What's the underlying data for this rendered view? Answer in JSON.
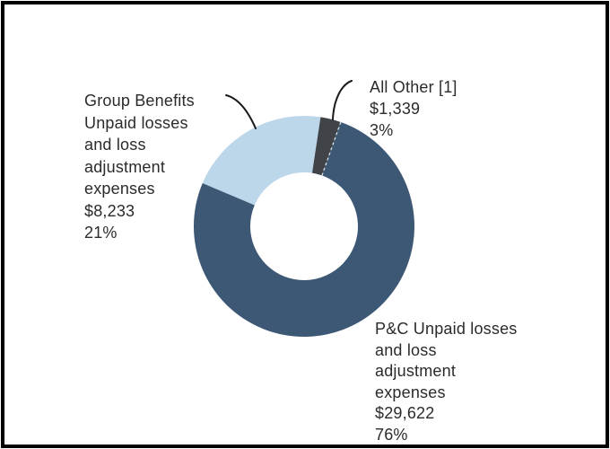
{
  "chart_data": {
    "type": "pie",
    "subtype": "donut",
    "title": "",
    "legend": "none",
    "direction": "clockwise",
    "start_angle_deg": -67,
    "slices": [
      {
        "name": "Group Benefits Unpaid losses and loss adjustment expenses",
        "label_display": "Group Benefits\nUnpaid losses\nand loss\nadjustment\nexpenses",
        "value": 8233,
        "value_display": "$8,233",
        "pct": 21,
        "pct_display": "21%",
        "color": "#BCD6EA"
      },
      {
        "name": "All Other [1]",
        "label_display": "All Other [1]",
        "value": 1339,
        "value_display": "$1,339",
        "pct": 3,
        "pct_display": "3%",
        "color": "#404347"
      },
      {
        "name": "P&C Unpaid losses and loss adjustment expenses",
        "label_display": "P&C Unpaid losses\nand loss\nadjustment\nexpenses",
        "value": 29622,
        "value_display": "$29,622",
        "pct": 76,
        "pct_display": "76%",
        "color": "#3C5875"
      }
    ],
    "colors": {
      "background": "#FFFFFF",
      "frame": "#000000",
      "text": "#2B2B2B",
      "leader_line": "#1A1A1A",
      "separator_dash": "#E8EEF4"
    }
  }
}
